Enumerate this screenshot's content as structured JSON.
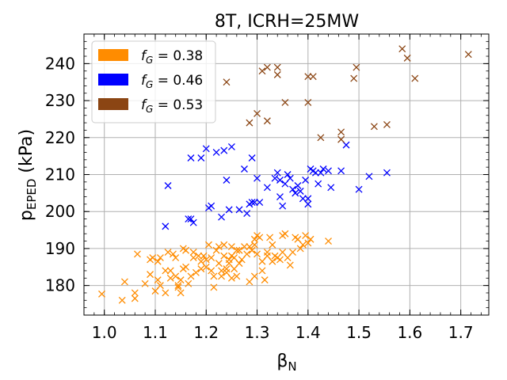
{
  "chart_data": {
    "type": "scatter",
    "title": "8T, ICRH=25MW",
    "xlabel_base": "β",
    "xlabel_sub": "N",
    "ylabel_base": "p",
    "ylabel_sub": "EPED",
    "ylabel_unit": " (kPa)",
    "xlim": [
      0.96,
      1.755
    ],
    "ylim": [
      172,
      248
    ],
    "xticks": [
      1.0,
      1.1,
      1.2,
      1.3,
      1.4,
      1.5,
      1.6,
      1.7
    ],
    "xtick_labels": [
      "1.0",
      "1.1",
      "1.2",
      "1.3",
      "1.4",
      "1.5",
      "1.6",
      "1.7"
    ],
    "yticks": [
      180,
      190,
      200,
      210,
      220,
      230,
      240
    ],
    "ytick_labels": [
      "180",
      "190",
      "200",
      "210",
      "220",
      "230",
      "240"
    ],
    "grid": true,
    "legend_position": "top-left",
    "marker": "x",
    "series": [
      {
        "name": "f_G = 0.38",
        "label_base": "f",
        "label_sub": "G",
        "label_value": " = 0.38",
        "color": "#ff8c00",
        "points": [
          [
            0.995,
            177.7
          ],
          [
            1.035,
            176.0
          ],
          [
            1.04,
            181.0
          ],
          [
            1.06,
            176.5
          ],
          [
            1.06,
            178.0
          ],
          [
            1.065,
            188.5
          ],
          [
            1.08,
            180.5
          ],
          [
            1.09,
            187.0
          ],
          [
            1.09,
            183.0
          ],
          [
            1.095,
            187.5
          ],
          [
            1.1,
            178.5
          ],
          [
            1.105,
            186.5
          ],
          [
            1.105,
            181.5
          ],
          [
            1.11,
            180.0
          ],
          [
            1.11,
            187.5
          ],
          [
            1.12,
            184.0
          ],
          [
            1.12,
            178.0
          ],
          [
            1.125,
            189.0
          ],
          [
            1.13,
            182.0
          ],
          [
            1.13,
            184.0
          ],
          [
            1.135,
            188.5
          ],
          [
            1.14,
            187.5
          ],
          [
            1.14,
            182.5
          ],
          [
            1.145,
            179.5
          ],
          [
            1.145,
            180.0
          ],
          [
            1.15,
            178.0
          ],
          [
            1.15,
            181.5
          ],
          [
            1.155,
            184.5
          ],
          [
            1.155,
            190.0
          ],
          [
            1.16,
            185.0
          ],
          [
            1.16,
            189.5
          ],
          [
            1.165,
            180.5
          ],
          [
            1.17,
            182.5
          ],
          [
            1.175,
            187.5
          ],
          [
            1.175,
            189.0
          ],
          [
            1.18,
            183.5
          ],
          [
            1.185,
            188.0
          ],
          [
            1.19,
            186.5
          ],
          [
            1.19,
            184.5
          ],
          [
            1.195,
            188.0
          ],
          [
            1.2,
            185.0
          ],
          [
            1.2,
            187.0
          ],
          [
            1.205,
            191.0
          ],
          [
            1.21,
            187.5
          ],
          [
            1.21,
            184.0
          ],
          [
            1.215,
            179.5
          ],
          [
            1.215,
            182.5
          ],
          [
            1.22,
            189.5
          ],
          [
            1.225,
            190.5
          ],
          [
            1.225,
            186.0
          ],
          [
            1.23,
            182.5
          ],
          [
            1.23,
            184.0
          ],
          [
            1.235,
            188.0
          ],
          [
            1.235,
            191.0
          ],
          [
            1.24,
            184.5
          ],
          [
            1.24,
            183.5
          ],
          [
            1.245,
            186.0
          ],
          [
            1.245,
            187.0
          ],
          [
            1.25,
            188.0
          ],
          [
            1.25,
            190.5
          ],
          [
            1.25,
            182.0
          ],
          [
            1.255,
            184.5
          ],
          [
            1.255,
            187.5
          ],
          [
            1.26,
            189.5
          ],
          [
            1.26,
            182.5
          ],
          [
            1.265,
            186.0
          ],
          [
            1.265,
            189.5
          ],
          [
            1.27,
            187.0
          ],
          [
            1.275,
            190.5
          ],
          [
            1.28,
            188.5
          ],
          [
            1.285,
            190.5
          ],
          [
            1.285,
            181.0
          ],
          [
            1.29,
            189.5
          ],
          [
            1.295,
            182.5
          ],
          [
            1.295,
            191.0
          ],
          [
            1.295,
            192.5
          ],
          [
            1.3,
            193.5
          ],
          [
            1.3,
            188.5
          ],
          [
            1.305,
            193.0
          ],
          [
            1.31,
            186.5
          ],
          [
            1.31,
            184.0
          ],
          [
            1.315,
            181.5
          ],
          [
            1.32,
            189.0
          ],
          [
            1.32,
            188.0
          ],
          [
            1.325,
            193.0
          ],
          [
            1.33,
            186.5
          ],
          [
            1.33,
            191.0
          ],
          [
            1.335,
            188.0
          ],
          [
            1.34,
            187.5
          ],
          [
            1.345,
            187.0
          ],
          [
            1.35,
            193.5
          ],
          [
            1.35,
            189.0
          ],
          [
            1.355,
            194.0
          ],
          [
            1.36,
            187.5
          ],
          [
            1.365,
            185.5
          ],
          [
            1.37,
            189.0
          ],
          [
            1.375,
            193.0
          ],
          [
            1.38,
            192.5
          ],
          [
            1.385,
            190.0
          ],
          [
            1.39,
            191.0
          ],
          [
            1.395,
            193.5
          ],
          [
            1.4,
            191.5
          ],
          [
            1.405,
            192.5
          ],
          [
            1.44,
            192.0
          ]
        ]
      },
      {
        "name": "f_G = 0.46",
        "label_base": "f",
        "label_sub": "G",
        "label_value": " = 0.46",
        "color": "#0000ff",
        "points": [
          [
            1.12,
            196.0
          ],
          [
            1.125,
            207.0
          ],
          [
            1.165,
            198.0
          ],
          [
            1.17,
            198.0
          ],
          [
            1.175,
            197.0
          ],
          [
            1.17,
            214.5
          ],
          [
            1.19,
            214.5
          ],
          [
            1.2,
            217.0
          ],
          [
            1.205,
            201.0
          ],
          [
            1.21,
            201.5
          ],
          [
            1.22,
            216.0
          ],
          [
            1.23,
            198.5
          ],
          [
            1.235,
            216.5
          ],
          [
            1.24,
            208.5
          ],
          [
            1.245,
            200.5
          ],
          [
            1.25,
            217.5
          ],
          [
            1.265,
            200.5
          ],
          [
            1.275,
            211.5
          ],
          [
            1.28,
            199.5
          ],
          [
            1.285,
            202.0
          ],
          [
            1.29,
            202.5
          ],
          [
            1.29,
            214.5
          ],
          [
            1.295,
            202.5
          ],
          [
            1.3,
            209.0
          ],
          [
            1.305,
            202.5
          ],
          [
            1.32,
            206.5
          ],
          [
            1.335,
            209.0
          ],
          [
            1.34,
            210.5
          ],
          [
            1.345,
            204.0
          ],
          [
            1.345,
            208.5
          ],
          [
            1.35,
            201.5
          ],
          [
            1.355,
            207.5
          ],
          [
            1.36,
            210.0
          ],
          [
            1.365,
            209.0
          ],
          [
            1.37,
            206.0
          ],
          [
            1.375,
            205.0
          ],
          [
            1.38,
            207.0
          ],
          [
            1.385,
            205.5
          ],
          [
            1.39,
            203.5
          ],
          [
            1.395,
            208.5
          ],
          [
            1.4,
            202.0
          ],
          [
            1.4,
            203.5
          ],
          [
            1.405,
            211.5
          ],
          [
            1.41,
            211.0
          ],
          [
            1.415,
            210.5
          ],
          [
            1.42,
            207.5
          ],
          [
            1.425,
            210.5
          ],
          [
            1.43,
            211.5
          ],
          [
            1.44,
            211.0
          ],
          [
            1.445,
            206.5
          ],
          [
            1.465,
            211.0
          ],
          [
            1.475,
            218.0
          ],
          [
            1.5,
            206.0
          ],
          [
            1.52,
            209.5
          ],
          [
            1.555,
            210.5
          ]
        ]
      },
      {
        "name": "f_G = 0.53",
        "label_base": "f",
        "label_sub": "G",
        "label_value": " = 0.53",
        "color": "#8b4513",
        "points": [
          [
            1.24,
            235.0
          ],
          [
            1.285,
            224.0
          ],
          [
            1.3,
            226.5
          ],
          [
            1.31,
            238.0
          ],
          [
            1.32,
            224.5
          ],
          [
            1.32,
            239.0
          ],
          [
            1.34,
            239.0
          ],
          [
            1.34,
            237.0
          ],
          [
            1.355,
            229.5
          ],
          [
            1.4,
            229.5
          ],
          [
            1.4,
            236.5
          ],
          [
            1.41,
            236.5
          ],
          [
            1.425,
            220.0
          ],
          [
            1.465,
            221.5
          ],
          [
            1.465,
            219.5
          ],
          [
            1.49,
            236.0
          ],
          [
            1.495,
            239.0
          ],
          [
            1.53,
            223.0
          ],
          [
            1.555,
            223.5
          ],
          [
            1.585,
            244.0
          ],
          [
            1.595,
            241.5
          ],
          [
            1.61,
            236.0
          ],
          [
            1.715,
            242.5
          ]
        ]
      }
    ]
  }
}
